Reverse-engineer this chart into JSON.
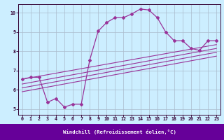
{
  "title": "",
  "xlabel": "Windchill (Refroidissement éolien,°C)",
  "ylabel": "",
  "bg_color": "#cceeff",
  "grid_color": "#aabbcc",
  "line_color": "#993399",
  "xlim": [
    -0.5,
    23.5
  ],
  "ylim": [
    4.7,
    10.45
  ],
  "xticks": [
    0,
    1,
    2,
    3,
    4,
    5,
    6,
    7,
    8,
    9,
    10,
    11,
    12,
    13,
    14,
    15,
    16,
    17,
    18,
    19,
    20,
    21,
    22,
    23
  ],
  "yticks": [
    5,
    6,
    7,
    8,
    9,
    10
  ],
  "zigzag_x": [
    0,
    1,
    2,
    3,
    4,
    5,
    6,
    7,
    8,
    9,
    10,
    11,
    12,
    13,
    14,
    15,
    16,
    17,
    18,
    19,
    20,
    21,
    22,
    23
  ],
  "zigzag_y": [
    6.55,
    6.65,
    6.65,
    5.35,
    5.55,
    5.1,
    5.25,
    5.25,
    7.55,
    9.05,
    9.5,
    9.75,
    9.75,
    9.95,
    10.2,
    10.15,
    9.75,
    9.0,
    8.55,
    8.55,
    8.15,
    8.05,
    8.55,
    8.55
  ],
  "line1_x": [
    0,
    23
  ],
  "line1_y": [
    6.55,
    8.35
  ],
  "line2_x": [
    0,
    23
  ],
  "line2_y": [
    6.3,
    8.15
  ],
  "line3_x": [
    0,
    23
  ],
  "line3_y": [
    6.1,
    7.95
  ],
  "line4_x": [
    0,
    23
  ],
  "line4_y": [
    5.9,
    7.75
  ]
}
